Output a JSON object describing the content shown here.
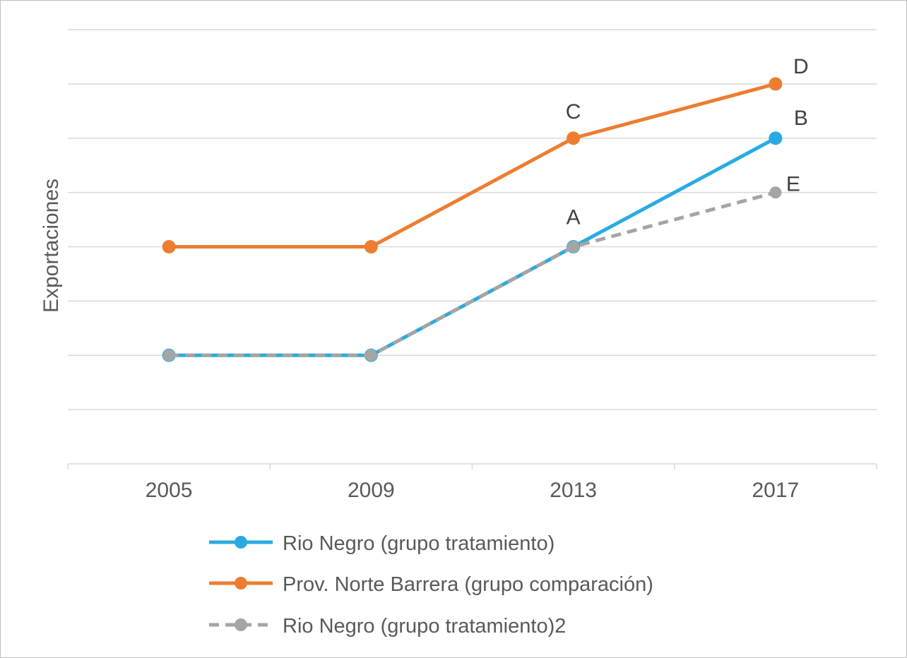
{
  "chart_data": {
    "type": "line",
    "title": "",
    "xlabel": "",
    "ylabel": "Exportaciones",
    "categories": [
      "2005",
      "2009",
      "2013",
      "2017"
    ],
    "ylim": [
      0,
      8
    ],
    "grid": true,
    "y_tick_labels_shown": false,
    "legend_position": "bottom",
    "series": [
      {
        "name": "Rio Negro (grupo tratamiento)",
        "values": [
          2,
          2,
          4,
          6
        ],
        "color": "#29abe2",
        "style": "solid"
      },
      {
        "name": "Prov. Norte Barrera (grupo comparación)",
        "values": [
          4,
          4,
          6,
          7
        ],
        "color": "#ed7d31",
        "style": "solid"
      },
      {
        "name": "Rio Negro (grupo tratamiento)2",
        "values": [
          2,
          2,
          4,
          5
        ],
        "color": "#a5a5a5",
        "style": "dashed"
      }
    ],
    "annotations": [
      {
        "text": "A",
        "series": 0,
        "index": 2
      },
      {
        "text": "B",
        "series": 0,
        "index": 3
      },
      {
        "text": "C",
        "series": 1,
        "index": 2
      },
      {
        "text": "D",
        "series": 1,
        "index": 3
      },
      {
        "text": "E",
        "series": 2,
        "index": 3
      }
    ]
  }
}
